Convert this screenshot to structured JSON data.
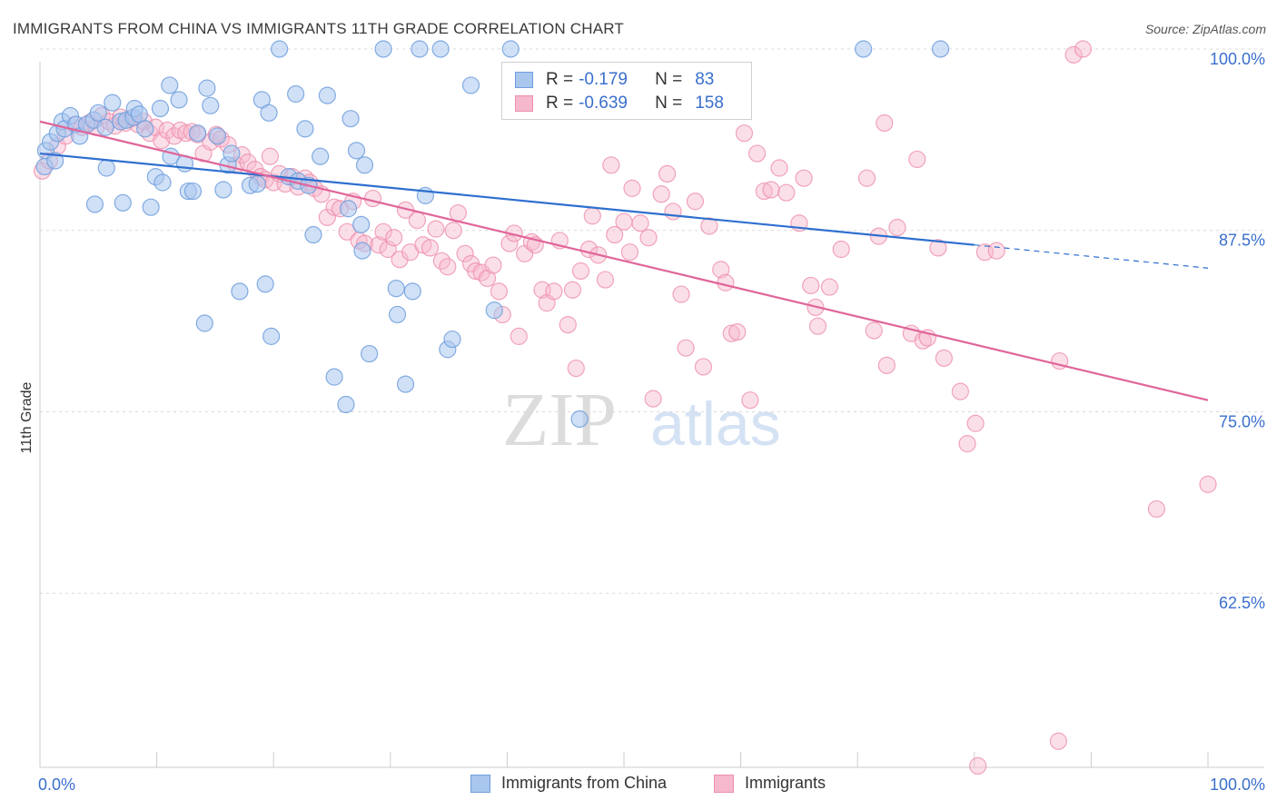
{
  "title": "IMMIGRANTS FROM CHINA VS IMMIGRANTS 11TH GRADE CORRELATION CHART",
  "source": "Source: ZipAtlas.com",
  "watermark": {
    "zip": "ZIP",
    "atlas": "atlas"
  },
  "colors": {
    "blue_fill": "#a9c6ee",
    "blue_stroke": "#6f9fdd",
    "blue_line": "#2e6fcf",
    "pink_fill": "#f6b8cc",
    "pink_stroke": "#ee8fad",
    "pink_line": "#e0659a",
    "axis_text": "#3a6fcc",
    "grid": "#d9d9d9"
  },
  "stats": {
    "blue": {
      "r_label": "R =",
      "r_value": "-0.179",
      "n_label": "N =",
      "n_value": "83"
    },
    "pink": {
      "r_label": "R =",
      "r_value": "-0.639",
      "n_label": "N =",
      "n_value": "158"
    }
  },
  "legend": {
    "blue": "Immigrants from China",
    "pink": "Immigrants"
  },
  "chart_data": {
    "type": "scatter",
    "title": "IMMIGRANTS FROM CHINA VS IMMIGRANTS 11TH GRADE CORRELATION CHART",
    "xlabel": "",
    "ylabel": "11th Grade",
    "xlim": [
      0,
      100
    ],
    "ylim": [
      50.5,
      101.0
    ],
    "x_tick_labels": [
      "0.0%",
      "100.0%"
    ],
    "y_ticks": [
      100,
      87.5,
      75,
      62.5
    ],
    "y_tick_labels": [
      "100.0%",
      "87.5%",
      "75.0%",
      "62.5%"
    ],
    "grid": "horizontal dashed",
    "legend_position": "bottom-center",
    "series": [
      {
        "name": "Immigrants from China",
        "color": "#a9c6ee",
        "trend": {
          "x": [
            0,
            80
          ],
          "y": [
            92.8,
            86.5
          ],
          "dashed_to": [
            100,
            84.9
          ]
        },
        "points": [
          [
            0.4,
            91.9
          ],
          [
            0.5,
            93.0
          ],
          [
            0.9,
            93.6
          ],
          [
            1.3,
            92.3
          ],
          [
            1.5,
            94.2
          ],
          [
            1.9,
            95.0
          ],
          [
            2.1,
            94.5
          ],
          [
            2.6,
            95.4
          ],
          [
            3.1,
            94.8
          ],
          [
            3.4,
            94.0
          ],
          [
            4.0,
            94.8
          ],
          [
            4.6,
            95.1
          ],
          [
            5.0,
            95.6
          ],
          [
            5.6,
            94.6
          ],
          [
            4.7,
            89.3
          ],
          [
            5.7,
            91.8
          ],
          [
            6.2,
            96.3
          ],
          [
            6.9,
            95.0
          ],
          [
            7.1,
            89.4
          ],
          [
            7.4,
            95.1
          ],
          [
            8.0,
            95.3
          ],
          [
            8.1,
            95.9
          ],
          [
            8.5,
            95.5
          ],
          [
            9.0,
            94.5
          ],
          [
            9.5,
            89.1
          ],
          [
            9.9,
            91.2
          ],
          [
            10.3,
            95.9
          ],
          [
            10.5,
            90.8
          ],
          [
            11.2,
            92.6
          ],
          [
            11.1,
            97.5
          ],
          [
            11.9,
            96.5
          ],
          [
            12.4,
            92.1
          ],
          [
            12.7,
            90.2
          ],
          [
            13.1,
            90.2
          ],
          [
            13.5,
            94.2
          ],
          [
            14.1,
            81.1
          ],
          [
            14.3,
            97.3
          ],
          [
            14.6,
            96.1
          ],
          [
            15.2,
            94.0
          ],
          [
            15.7,
            90.3
          ],
          [
            16.1,
            92.0
          ],
          [
            16.4,
            92.8
          ],
          [
            17.1,
            83.3
          ],
          [
            18.0,
            90.6
          ],
          [
            18.6,
            90.7
          ],
          [
            19.0,
            96.5
          ],
          [
            19.3,
            83.8
          ],
          [
            19.6,
            95.6
          ],
          [
            19.8,
            80.2
          ],
          [
            20.5,
            100.0
          ],
          [
            21.3,
            91.2
          ],
          [
            21.9,
            96.9
          ],
          [
            22.1,
            90.9
          ],
          [
            22.7,
            94.5
          ],
          [
            23.0,
            90.6
          ],
          [
            23.4,
            87.2
          ],
          [
            24.0,
            92.6
          ],
          [
            24.6,
            96.8
          ],
          [
            25.2,
            77.4
          ],
          [
            26.2,
            75.5
          ],
          [
            26.4,
            89.0
          ],
          [
            26.6,
            95.2
          ],
          [
            27.1,
            93.0
          ],
          [
            27.5,
            87.9
          ],
          [
            27.6,
            86.1
          ],
          [
            27.8,
            92.0
          ],
          [
            28.2,
            79.0
          ],
          [
            29.4,
            100.0
          ],
          [
            30.5,
            83.5
          ],
          [
            30.6,
            81.7
          ],
          [
            31.3,
            76.9
          ],
          [
            31.9,
            83.3
          ],
          [
            32.5,
            100.0
          ],
          [
            33.0,
            89.9
          ],
          [
            34.3,
            100.0
          ],
          [
            34.9,
            79.3
          ],
          [
            35.3,
            80.0
          ],
          [
            36.9,
            97.5
          ],
          [
            38.9,
            82.0
          ],
          [
            40.3,
            100.0
          ],
          [
            46.2,
            74.5
          ],
          [
            70.5,
            100.0
          ],
          [
            77.1,
            100.0
          ]
        ]
      },
      {
        "name": "Immigrants",
        "color": "#f6b8cc",
        "trend": {
          "x": [
            0,
            100
          ],
          "y": [
            95.0,
            75.8
          ]
        },
        "points": [
          [
            0.2,
            91.6
          ],
          [
            0.8,
            92.3
          ],
          [
            1.5,
            93.3
          ],
          [
            2.2,
            94.0
          ],
          [
            3.0,
            94.8
          ],
          [
            3.6,
            94.6
          ],
          [
            4.2,
            94.9
          ],
          [
            4.8,
            94.6
          ],
          [
            5.3,
            95.4
          ],
          [
            5.9,
            95.0
          ],
          [
            6.4,
            94.7
          ],
          [
            6.9,
            95.3
          ],
          [
            7.3,
            94.9
          ],
          [
            7.8,
            95.2
          ],
          [
            8.4,
            94.8
          ],
          [
            8.9,
            95.0
          ],
          [
            9.4,
            94.2
          ],
          [
            9.9,
            94.6
          ],
          [
            10.4,
            93.7
          ],
          [
            10.9,
            94.4
          ],
          [
            11.5,
            94.0
          ],
          [
            12.0,
            94.4
          ],
          [
            12.5,
            94.2
          ],
          [
            13.0,
            94.3
          ],
          [
            13.5,
            94.1
          ],
          [
            14.0,
            92.8
          ],
          [
            14.6,
            93.6
          ],
          [
            15.1,
            94.1
          ],
          [
            15.5,
            93.8
          ],
          [
            16.1,
            93.4
          ],
          [
            16.8,
            92.0
          ],
          [
            17.3,
            92.7
          ],
          [
            17.8,
            92.2
          ],
          [
            18.4,
            91.7
          ],
          [
            18.9,
            91.2
          ],
          [
            19.3,
            91.0
          ],
          [
            19.7,
            92.6
          ],
          [
            20.0,
            90.8
          ],
          [
            20.5,
            91.4
          ],
          [
            21.0,
            90.7
          ],
          [
            21.6,
            91.2
          ],
          [
            22.1,
            90.5
          ],
          [
            22.7,
            91.1
          ],
          [
            23.1,
            90.8
          ],
          [
            23.5,
            90.4
          ],
          [
            24.1,
            90.0
          ],
          [
            24.6,
            88.4
          ],
          [
            25.2,
            89.1
          ],
          [
            25.7,
            89.0
          ],
          [
            26.3,
            87.4
          ],
          [
            26.8,
            89.5
          ],
          [
            27.3,
            86.8
          ],
          [
            27.8,
            86.6
          ],
          [
            28.5,
            89.7
          ],
          [
            29.0,
            86.5
          ],
          [
            29.4,
            87.4
          ],
          [
            29.8,
            86.2
          ],
          [
            30.3,
            87.0
          ],
          [
            30.8,
            85.5
          ],
          [
            31.3,
            88.9
          ],
          [
            31.7,
            86.0
          ],
          [
            32.3,
            88.2
          ],
          [
            32.8,
            86.5
          ],
          [
            33.4,
            86.3
          ],
          [
            33.9,
            87.6
          ],
          [
            34.4,
            85.4
          ],
          [
            34.9,
            85.0
          ],
          [
            35.4,
            87.5
          ],
          [
            35.8,
            88.7
          ],
          [
            36.4,
            85.9
          ],
          [
            36.9,
            85.2
          ],
          [
            37.3,
            84.7
          ],
          [
            37.8,
            84.6
          ],
          [
            38.3,
            84.2
          ],
          [
            38.8,
            85.1
          ],
          [
            39.3,
            83.3
          ],
          [
            39.6,
            81.7
          ],
          [
            40.2,
            86.6
          ],
          [
            40.6,
            87.3
          ],
          [
            41.0,
            80.2
          ],
          [
            41.5,
            85.9
          ],
          [
            42.1,
            86.7
          ],
          [
            42.4,
            86.5
          ],
          [
            43.0,
            83.4
          ],
          [
            43.4,
            82.5
          ],
          [
            44.0,
            83.3
          ],
          [
            44.5,
            86.8
          ],
          [
            45.2,
            81.0
          ],
          [
            45.6,
            83.4
          ],
          [
            45.9,
            78.0
          ],
          [
            46.3,
            84.7
          ],
          [
            47.0,
            86.2
          ],
          [
            47.3,
            88.5
          ],
          [
            47.8,
            85.8
          ],
          [
            48.4,
            84.1
          ],
          [
            48.9,
            92.0
          ],
          [
            49.2,
            87.2
          ],
          [
            50.0,
            88.1
          ],
          [
            50.5,
            86.0
          ],
          [
            50.7,
            90.4
          ],
          [
            51.4,
            88.0
          ],
          [
            52.1,
            87.0
          ],
          [
            52.5,
            75.9
          ],
          [
            53.2,
            90.0
          ],
          [
            53.7,
            91.4
          ],
          [
            54.2,
            88.8
          ],
          [
            54.9,
            83.1
          ],
          [
            55.3,
            79.4
          ],
          [
            56.1,
            89.5
          ],
          [
            56.8,
            78.1
          ],
          [
            57.3,
            87.8
          ],
          [
            58.3,
            84.8
          ],
          [
            58.7,
            83.9
          ],
          [
            59.2,
            80.4
          ],
          [
            59.7,
            80.5
          ],
          [
            60.3,
            94.2
          ],
          [
            60.8,
            75.8
          ],
          [
            61.4,
            92.8
          ],
          [
            62.0,
            90.2
          ],
          [
            62.6,
            90.3
          ],
          [
            63.3,
            91.8
          ],
          [
            63.9,
            90.1
          ],
          [
            65.0,
            88.0
          ],
          [
            65.4,
            91.1
          ],
          [
            66.0,
            83.7
          ],
          [
            66.4,
            82.2
          ],
          [
            66.6,
            80.9
          ],
          [
            67.6,
            83.6
          ],
          [
            68.6,
            86.2
          ],
          [
            70.8,
            91.1
          ],
          [
            71.4,
            80.6
          ],
          [
            71.8,
            87.1
          ],
          [
            72.3,
            94.9
          ],
          [
            72.5,
            78.2
          ],
          [
            73.4,
            87.7
          ],
          [
            74.6,
            80.4
          ],
          [
            75.1,
            92.4
          ],
          [
            75.6,
            79.9
          ],
          [
            76.0,
            80.1
          ],
          [
            76.9,
            86.3
          ],
          [
            77.4,
            78.7
          ],
          [
            78.8,
            76.4
          ],
          [
            79.4,
            72.8
          ],
          [
            80.1,
            74.2
          ],
          [
            80.9,
            86.0
          ],
          [
            81.9,
            86.1
          ],
          [
            80.3,
            50.6
          ],
          [
            87.3,
            78.5
          ],
          [
            88.5,
            99.6
          ],
          [
            89.3,
            100.0
          ],
          [
            95.6,
            68.3
          ],
          [
            100.0,
            70.0
          ],
          [
            87.2,
            52.3
          ]
        ]
      }
    ]
  }
}
